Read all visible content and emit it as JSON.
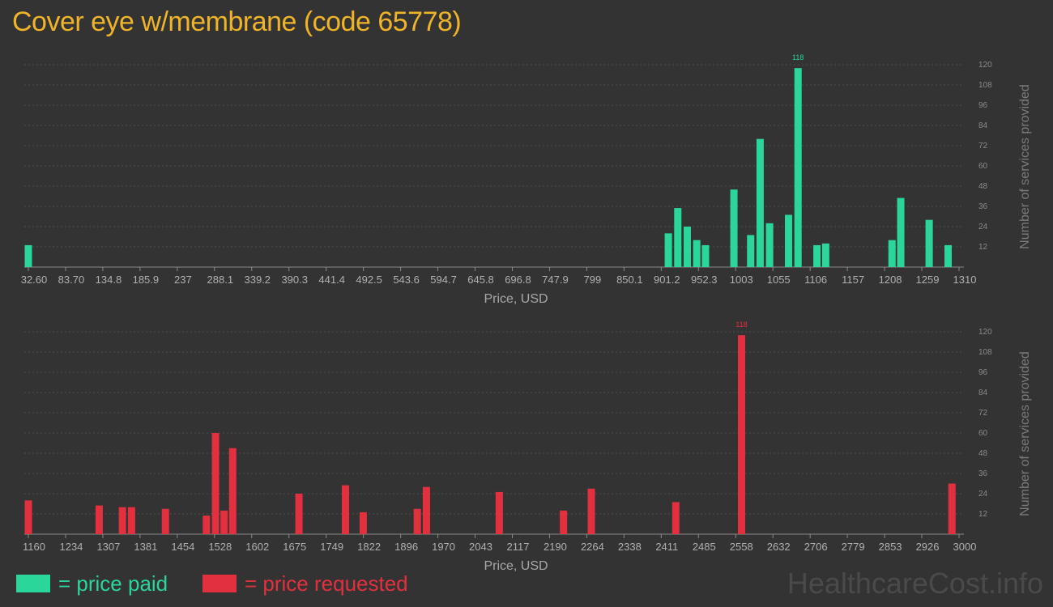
{
  "title": "Cover eye w/membrane (code 65778)",
  "colors": {
    "paid": "#2bd69a",
    "requested": "#e3303f",
    "title": "#f0b429",
    "background": "#333333"
  },
  "legend": {
    "paid_label": "= price paid",
    "requested_label": "= price requested"
  },
  "watermark": "HealthcareCost.info",
  "chart_data": [
    {
      "type": "bar",
      "name": "price paid",
      "xlabel": "Price, USD",
      "ylabel": "Number of services provided",
      "ylim": [
        0,
        120
      ],
      "yticks": [
        12,
        24,
        36,
        48,
        60,
        72,
        84,
        96,
        108,
        120
      ],
      "xrange": [
        32.6,
        1310
      ],
      "xticks": [
        "32.60",
        "83.70",
        "134.8",
        "185.9",
        "237",
        "288.1",
        "339.2",
        "390.3",
        "441.4",
        "492.5",
        "543.6",
        "594.7",
        "645.8",
        "696.8",
        "747.9",
        "799",
        "850.1",
        "901.2",
        "952.3",
        "1003",
        "1055",
        "1106",
        "1157",
        "1208",
        "1259",
        "1310"
      ],
      "max_label": "118",
      "points": [
        {
          "x": 32.6,
          "y": 13
        },
        {
          "x": 911,
          "y": 20
        },
        {
          "x": 924,
          "y": 35
        },
        {
          "x": 937,
          "y": 24
        },
        {
          "x": 950,
          "y": 16
        },
        {
          "x": 962,
          "y": 13
        },
        {
          "x": 1001,
          "y": 46
        },
        {
          "x": 1024,
          "y": 19
        },
        {
          "x": 1037,
          "y": 76
        },
        {
          "x": 1050,
          "y": 26
        },
        {
          "x": 1076,
          "y": 31
        },
        {
          "x": 1089,
          "y": 118
        },
        {
          "x": 1115,
          "y": 13
        },
        {
          "x": 1127,
          "y": 14
        },
        {
          "x": 1218,
          "y": 16
        },
        {
          "x": 1230,
          "y": 41
        },
        {
          "x": 1269,
          "y": 28
        },
        {
          "x": 1295,
          "y": 13
        }
      ]
    },
    {
      "type": "bar",
      "name": "price requested",
      "xlabel": "Price, USD",
      "ylabel": "Number of services provided",
      "ylim": [
        0,
        120
      ],
      "yticks": [
        12,
        24,
        36,
        48,
        60,
        72,
        84,
        96,
        108,
        120
      ],
      "xrange": [
        1160,
        3000
      ],
      "xticks": [
        "1160",
        "1234",
        "1307",
        "1381",
        "1454",
        "1528",
        "1602",
        "1675",
        "1749",
        "1822",
        "1896",
        "1970",
        "2043",
        "2117",
        "2190",
        "2264",
        "2338",
        "2411",
        "2485",
        "2558",
        "2632",
        "2706",
        "2779",
        "2853",
        "2926",
        "3000"
      ],
      "max_label": "118",
      "points": [
        {
          "x": 1160,
          "y": 20
        },
        {
          "x": 1300,
          "y": 17
        },
        {
          "x": 1346,
          "y": 16
        },
        {
          "x": 1364,
          "y": 16
        },
        {
          "x": 1431,
          "y": 15
        },
        {
          "x": 1512,
          "y": 11
        },
        {
          "x": 1530,
          "y": 60
        },
        {
          "x": 1547,
          "y": 14
        },
        {
          "x": 1564,
          "y": 51
        },
        {
          "x": 1695,
          "y": 24
        },
        {
          "x": 1787,
          "y": 29
        },
        {
          "x": 1822,
          "y": 13
        },
        {
          "x": 1929,
          "y": 15
        },
        {
          "x": 1947,
          "y": 28
        },
        {
          "x": 2091,
          "y": 25
        },
        {
          "x": 2218,
          "y": 14
        },
        {
          "x": 2273,
          "y": 27
        },
        {
          "x": 2440,
          "y": 19
        },
        {
          "x": 2570,
          "y": 118
        },
        {
          "x": 2986,
          "y": 30
        }
      ]
    }
  ]
}
